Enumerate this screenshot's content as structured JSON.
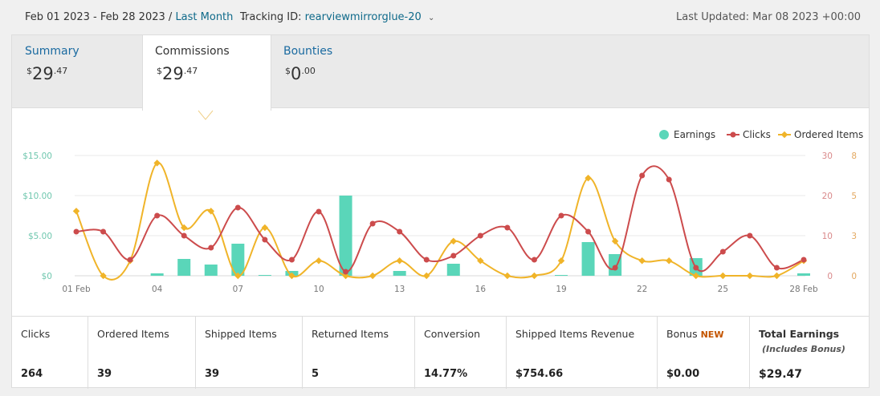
{
  "header": {
    "date_range": "Feb 01 2023 - Feb 28 2023 /",
    "range_preset": "Last Month",
    "tracking_label": "Tracking ID:",
    "tracking_id": "rearviewmirrorglue-20",
    "last_updated": "Last Updated: Mar 08 2023 +00:00"
  },
  "tabs": [
    {
      "label": "Summary",
      "currency": "$",
      "whole": "29",
      "cents": ".47"
    },
    {
      "label": "Commissions",
      "currency": "$",
      "whole": "29",
      "cents": ".47"
    },
    {
      "label": "Bounties",
      "currency": "$",
      "whole": "0",
      "cents": ".00"
    }
  ],
  "chart_data": {
    "type": "bar+line",
    "x": [
      "01 Feb",
      "02",
      "03",
      "04",
      "05",
      "06",
      "07",
      "08",
      "09",
      "10",
      "11",
      "12",
      "13",
      "14",
      "15",
      "16",
      "17",
      "18",
      "19",
      "20",
      "21",
      "22",
      "23",
      "24",
      "25",
      "26",
      "27",
      "28 Feb"
    ],
    "x_tick_labels": [
      "01 Feb",
      "04",
      "07",
      "10",
      "13",
      "16",
      "19",
      "22",
      "25",
      "28 Feb"
    ],
    "legend": [
      "Earnings",
      "Clicks",
      "Ordered Items"
    ],
    "legend_position": "top-right",
    "colors": {
      "earnings": "#5ad6b9",
      "clicks": "#cc4b4c",
      "ordered": "#f0b429"
    },
    "y_left": {
      "ticks": [
        "$0",
        "$5.00",
        "$10.00",
        "$15.00"
      ],
      "range": [
        0,
        15
      ]
    },
    "y_clicks": {
      "ticks": [
        "0",
        "10",
        "20",
        "30"
      ],
      "range": [
        0,
        30
      ]
    },
    "y_ordered": {
      "ticks": [
        "0",
        "3",
        "5",
        "8"
      ],
      "range": [
        0,
        8
      ]
    },
    "series": [
      {
        "name": "Earnings",
        "type": "bar",
        "values": [
          0,
          0,
          0,
          0.3,
          2.1,
          1.4,
          4.0,
          0.1,
          0.6,
          0,
          10.0,
          0,
          0.6,
          0,
          1.5,
          0,
          0,
          0,
          0.1,
          4.2,
          2.7,
          0,
          0,
          2.2,
          0,
          0,
          0,
          0.3
        ]
      },
      {
        "name": "Clicks",
        "type": "line",
        "values": [
          11,
          11,
          4,
          15,
          10,
          7,
          17,
          9,
          4,
          16,
          1,
          13,
          11,
          4,
          5,
          10,
          12,
          4,
          15,
          11,
          2,
          25,
          24,
          2,
          6,
          10,
          2,
          4
        ]
      },
      {
        "name": "Ordered Items",
        "type": "line",
        "values": [
          4.3,
          0,
          1,
          7.5,
          3.2,
          4.3,
          0,
          3.2,
          0,
          1,
          0,
          0,
          1,
          0,
          2.3,
          1,
          0,
          0,
          1,
          6.5,
          2.3,
          1,
          1,
          0,
          0,
          0,
          0,
          1
        ]
      }
    ],
    "grid": true
  },
  "stats": [
    {
      "label": "Clicks",
      "value": "264"
    },
    {
      "label": "Ordered Items",
      "value": "39"
    },
    {
      "label": "Shipped Items",
      "value": "39"
    },
    {
      "label": "Returned Items",
      "value": "5"
    },
    {
      "label": "Conversion",
      "value": "14.77%"
    },
    {
      "label": "Shipped Items Revenue",
      "value": "$754.66"
    },
    {
      "label": "Bonus",
      "badge": "NEW",
      "value": "$0.00"
    },
    {
      "label": "Total Earnings",
      "sublabel": "(Includes Bonus)",
      "value": "$29.47"
    }
  ]
}
